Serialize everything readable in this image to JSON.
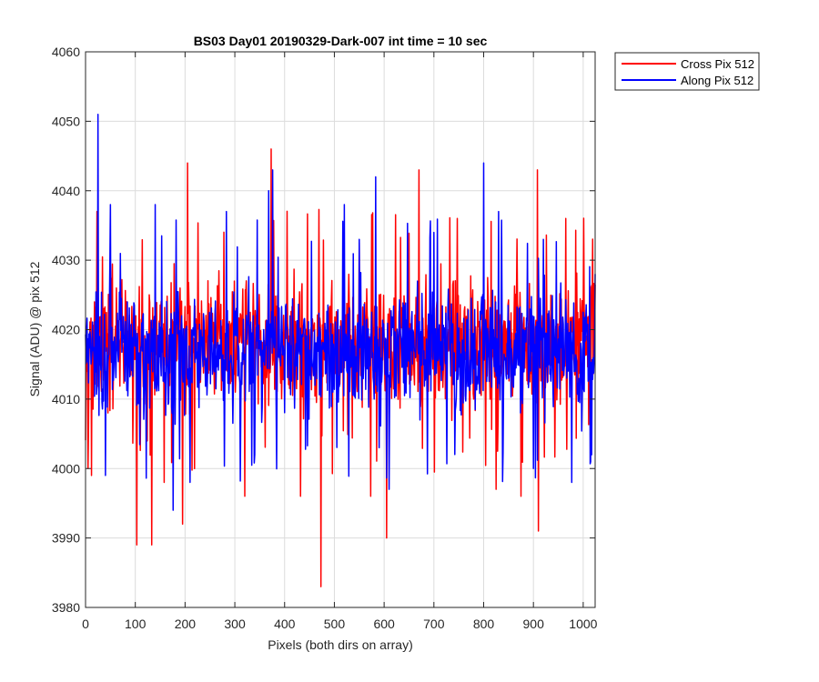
{
  "chart_data": {
    "type": "line",
    "title": "BS03 Day01 20190329-Dark-007 int time = 10 sec",
    "xlabel": "Pixels (both dirs on array)",
    "ylabel": "Signal (ADU) @ pix 512",
    "xlim": [
      0,
      1024
    ],
    "ylim": [
      3980,
      4060
    ],
    "xticks": [
      0,
      100,
      200,
      300,
      400,
      500,
      600,
      700,
      800,
      900,
      1000
    ],
    "yticks": [
      3980,
      3990,
      4000,
      4010,
      4020,
      4030,
      4040,
      4050,
      4060
    ],
    "grid": true,
    "legend_position": "outside-top-right",
    "series": [
      {
        "name": "Cross Pix 512",
        "color": "#ff0000",
        "noise": {
          "center": 4018,
          "typical_range": [
            4005,
            4032
          ]
        },
        "peaks": [
          {
            "x": 5,
            "y": 4000
          },
          {
            "x": 12,
            "y": 3999
          },
          {
            "x": 23,
            "y": 4037
          },
          {
            "x": 45,
            "y": 4008
          },
          {
            "x": 103,
            "y": 3989
          },
          {
            "x": 128,
            "y": 4025
          },
          {
            "x": 133,
            "y": 3989
          },
          {
            "x": 158,
            "y": 3998
          },
          {
            "x": 195,
            "y": 3992
          },
          {
            "x": 205,
            "y": 4044
          },
          {
            "x": 320,
            "y": 3996
          },
          {
            "x": 373,
            "y": 4046
          },
          {
            "x": 432,
            "y": 3996
          },
          {
            "x": 473,
            "y": 3983
          },
          {
            "x": 510,
            "y": 4013
          },
          {
            "x": 573,
            "y": 3996
          },
          {
            "x": 605,
            "y": 3990
          },
          {
            "x": 670,
            "y": 4043
          },
          {
            "x": 747,
            "y": 4036
          },
          {
            "x": 825,
            "y": 3997
          },
          {
            "x": 875,
            "y": 3996
          },
          {
            "x": 908,
            "y": 4043
          },
          {
            "x": 910,
            "y": 3991
          },
          {
            "x": 965,
            "y": 4036
          },
          {
            "x": 1000,
            "y": 4022
          }
        ]
      },
      {
        "name": "Along Pix 512",
        "color": "#0000ff",
        "noise": {
          "center": 4017,
          "typical_range": [
            4004,
            4030
          ]
        },
        "peaks": [
          {
            "x": 25,
            "y": 4051
          },
          {
            "x": 40,
            "y": 3999
          },
          {
            "x": 50,
            "y": 4038
          },
          {
            "x": 140,
            "y": 4038
          },
          {
            "x": 176,
            "y": 3994
          },
          {
            "x": 210,
            "y": 3998
          },
          {
            "x": 283,
            "y": 4037
          },
          {
            "x": 340,
            "y": 4002
          },
          {
            "x": 368,
            "y": 4040
          },
          {
            "x": 376,
            "y": 4043
          },
          {
            "x": 520,
            "y": 4038
          },
          {
            "x": 583,
            "y": 4042
          },
          {
            "x": 610,
            "y": 3997
          },
          {
            "x": 700,
            "y": 4034
          },
          {
            "x": 800,
            "y": 4044
          },
          {
            "x": 830,
            "y": 4037
          },
          {
            "x": 900,
            "y": 4000
          },
          {
            "x": 920,
            "y": 4033
          },
          {
            "x": 977,
            "y": 3998
          },
          {
            "x": 1015,
            "y": 4001
          },
          {
            "x": 1024,
            "y": 4028
          }
        ]
      }
    ]
  }
}
